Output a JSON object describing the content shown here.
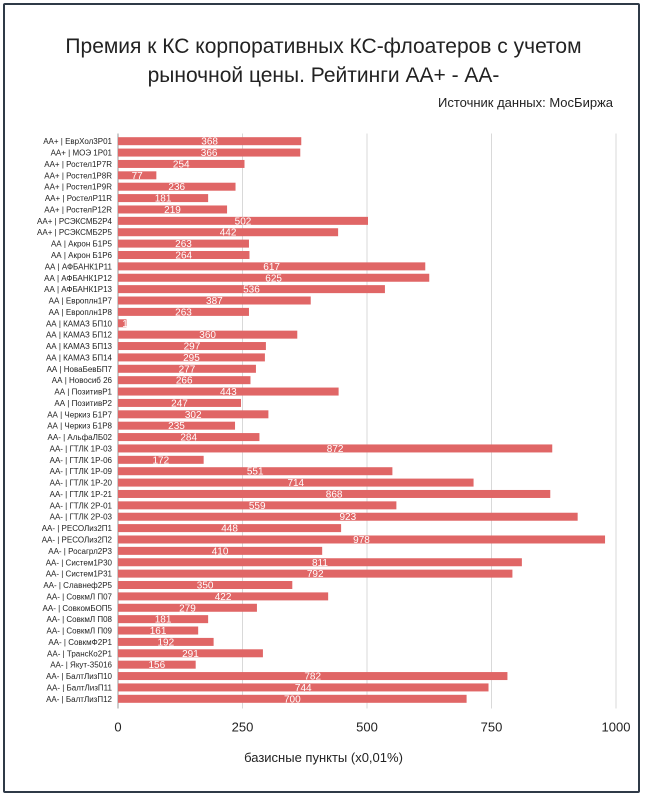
{
  "chart_data": {
    "type": "bar",
    "orientation": "horizontal",
    "title_line1": "Премия к КС корпоративных КС-флоатеров с учетом",
    "title_line2": "рыночной цены. Рейтинги АА+ - АА-",
    "source": "Источник данных: МосБиржа",
    "xlabel": "базисные пункты (х0,01%)",
    "xlim": [
      0,
      1000
    ],
    "xticks": [
      0,
      250,
      500,
      750,
      1000
    ],
    "grid": true,
    "bar_color": "#e06666",
    "categories": [
      "АА+ | ЕврХол3Р01",
      "АА+ | МОЭ 1Р01",
      "АА+ | Ростел1Р7R",
      "АА+ | Ростел1Р8R",
      "АА+ | Ростел1Р9R",
      "АА+ | РостелР11R",
      "АА+ | РостелР12R",
      "АА+ | РСЭКСМБ2Р4",
      "АА+ | РСЭКСМБ2Р5",
      "АА | Акрон Б1Р5",
      "АА | Акрон Б1Р6",
      "АА | АФБАНК1Р11",
      "АА | АФБАНК1Р12",
      "АА | АФБАНК1Р13",
      "АА | Европлн1Р7",
      "АА | Европлн1Р8",
      "АА | КАМАЗ БП10",
      "АА | КАМАЗ БП12",
      "АА | КАМАЗ БП13",
      "АА | КАМАЗ БП14",
      "АА | НоваБевБП7",
      "АА | Новосиб 26",
      "АА | ПозитивР1",
      "АА | ПозитивР2",
      "АА | Черкиз Б1Р7",
      "АА | Черкиз Б1Р8",
      "АА- | АльфаЛБ02",
      "АА- | ГТЛК 1Р-03",
      "АА- | ГТЛК 1Р-06",
      "АА- | ГТЛК 1Р-09",
      "АА- | ГТЛК 1Р-20",
      "АА- | ГТЛК 1Р-21",
      "АА- | ГТЛК 2Р-01",
      "АА- | ГТЛК 2Р-03",
      "АА- | РЕСОЛиз2П1",
      "АА- | РЕСОЛиз2П2",
      "АА- | Росагрл2Р3",
      "АА- | Систем1Р30",
      "АА- | Систем1Р31",
      "АА- | Славнеф2Р5",
      "АА- | СовкмЛ П07",
      "АА- | СовкомБОП5",
      "АА- | СовкмЛ П08",
      "АА- | СовкмЛ П09",
      "АА- | СовкмФ2Р1",
      "АА- | ТрансКо2Р1",
      "АА- | Якут-35016",
      "АА- | БалтЛизП10",
      "АА- | БалтЛизП11",
      "АА- | БалтЛизП12"
    ],
    "values": [
      368,
      366,
      254,
      77,
      236,
      181,
      219,
      502,
      442,
      263,
      264,
      617,
      625,
      536,
      387,
      263,
      17,
      360,
      297,
      295,
      277,
      266,
      443,
      247,
      302,
      235,
      284,
      872,
      172,
      551,
      714,
      868,
      559,
      923,
      448,
      978,
      410,
      811,
      792,
      350,
      422,
      279,
      181,
      161,
      192,
      291,
      156,
      782,
      744,
      700
    ]
  }
}
